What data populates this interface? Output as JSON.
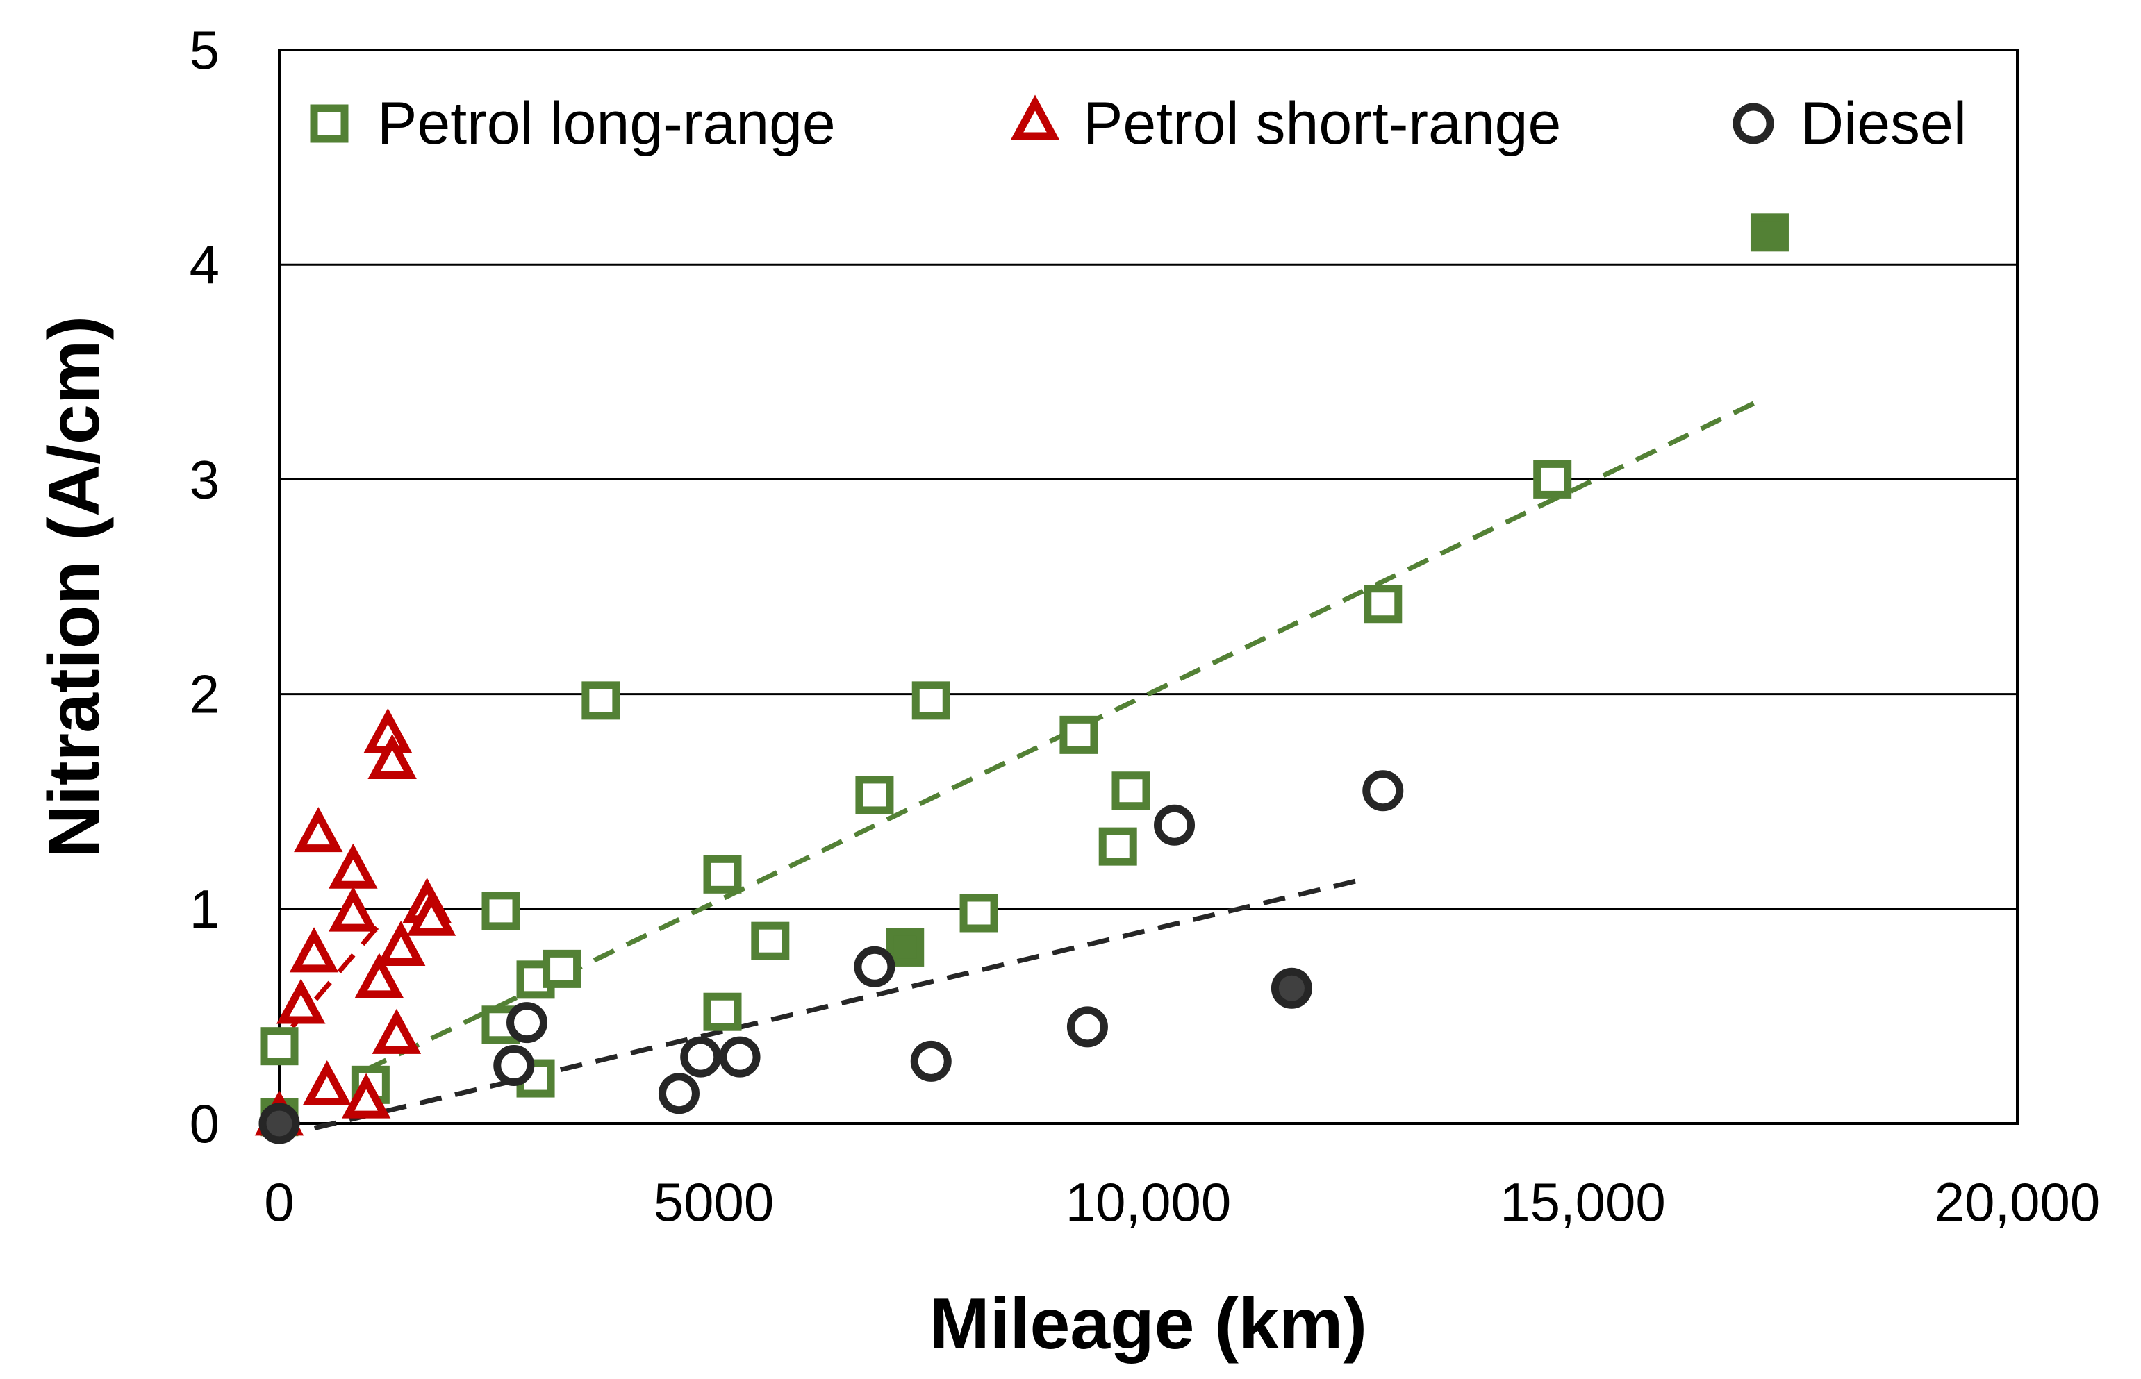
{
  "chart_data": {
    "type": "scatter",
    "xlabel": "Mileage (km)",
    "ylabel": "Nitration (A/cm)",
    "xlim": [
      0,
      20000
    ],
    "ylim": [
      0,
      5
    ],
    "xticks": [
      0,
      5000,
      10000,
      15000,
      20000
    ],
    "xtick_labels": [
      "0",
      "5000",
      "10,000",
      "15,000",
      "20,000"
    ],
    "yticks": [
      0,
      1,
      2,
      3,
      4,
      5
    ],
    "ytick_labels": [
      "0",
      "1",
      "2",
      "3",
      "4",
      "5"
    ],
    "grid": "horizontal",
    "legend_position": "top",
    "series": [
      {
        "name": "Petrol long-range",
        "marker": "square",
        "color": "#538135",
        "points": [
          {
            "x": 0,
            "y": 0.03,
            "filled": true
          },
          {
            "x": 0,
            "y": 0.36,
            "filled": false
          },
          {
            "x": 1050,
            "y": 0.18,
            "filled": false
          },
          {
            "x": 2550,
            "y": 0.99,
            "filled": false
          },
          {
            "x": 2550,
            "y": 0.46,
            "filled": false
          },
          {
            "x": 2950,
            "y": 0.67,
            "filled": false
          },
          {
            "x": 2950,
            "y": 0.21,
            "filled": false
          },
          {
            "x": 3250,
            "y": 0.72,
            "filled": false
          },
          {
            "x": 3700,
            "y": 1.97,
            "filled": false
          },
          {
            "x": 5100,
            "y": 1.16,
            "filled": false
          },
          {
            "x": 5100,
            "y": 0.52,
            "filled": false
          },
          {
            "x": 5650,
            "y": 0.85,
            "filled": false
          },
          {
            "x": 6850,
            "y": 1.53,
            "filled": false
          },
          {
            "x": 7200,
            "y": 0.82,
            "filled": true
          },
          {
            "x": 7500,
            "y": 1.97,
            "filled": false
          },
          {
            "x": 8050,
            "y": 0.98,
            "filled": false
          },
          {
            "x": 9200,
            "y": 1.81,
            "filled": false
          },
          {
            "x": 9650,
            "y": 1.29,
            "filled": false
          },
          {
            "x": 9800,
            "y": 1.55,
            "filled": false
          },
          {
            "x": 12700,
            "y": 2.42,
            "filled": false
          },
          {
            "x": 14650,
            "y": 3.0,
            "filled": false
          },
          {
            "x": 17150,
            "y": 4.15,
            "filled": true
          }
        ]
      },
      {
        "name": "Petrol short-range",
        "marker": "triangle",
        "color": "#c00000",
        "points": [
          {
            "x": 0,
            "y": 0.02,
            "filled": false
          },
          {
            "x": 250,
            "y": 0.54,
            "filled": false
          },
          {
            "x": 400,
            "y": 0.78,
            "filled": false
          },
          {
            "x": 450,
            "y": 1.34,
            "filled": false
          },
          {
            "x": 550,
            "y": 0.16,
            "filled": false
          },
          {
            "x": 850,
            "y": 1.17,
            "filled": false
          },
          {
            "x": 850,
            "y": 0.97,
            "filled": false
          },
          {
            "x": 1000,
            "y": 0.1,
            "filled": false
          },
          {
            "x": 1150,
            "y": 0.66,
            "filled": false
          },
          {
            "x": 1250,
            "y": 1.8,
            "filled": false
          },
          {
            "x": 1300,
            "y": 1.68,
            "filled": false
          },
          {
            "x": 1350,
            "y": 0.4,
            "filled": false
          },
          {
            "x": 1400,
            "y": 0.81,
            "filled": false
          },
          {
            "x": 1700,
            "y": 1.01,
            "filled": false
          },
          {
            "x": 1750,
            "y": 0.95,
            "filled": false
          }
        ]
      },
      {
        "name": "Diesel",
        "marker": "circle",
        "color": "#262626",
        "points": [
          {
            "x": 0,
            "y": 0.0,
            "filled": true
          },
          {
            "x": 2700,
            "y": 0.27,
            "filled": false
          },
          {
            "x": 2850,
            "y": 0.47,
            "filled": false
          },
          {
            "x": 4600,
            "y": 0.14,
            "filled": false
          },
          {
            "x": 4850,
            "y": 0.31,
            "filled": false
          },
          {
            "x": 5300,
            "y": 0.31,
            "filled": false
          },
          {
            "x": 6850,
            "y": 0.73,
            "filled": false
          },
          {
            "x": 7500,
            "y": 0.29,
            "filled": false
          },
          {
            "x": 9300,
            "y": 0.45,
            "filled": false
          },
          {
            "x": 10300,
            "y": 1.39,
            "filled": false
          },
          {
            "x": 11650,
            "y": 0.63,
            "filled": true
          },
          {
            "x": 12700,
            "y": 1.55,
            "filled": false
          }
        ]
      }
    ],
    "trendlines": [
      {
        "series": "Petrol long-range",
        "style": "dashed",
        "color": "#538135",
        "from": [
          1000,
          0.25
        ],
        "to": [
          17100,
          3.38
        ]
      },
      {
        "series": "Petrol short-range",
        "style": "dashed",
        "color": "#c00000",
        "from": [
          150,
          0.45
        ],
        "to": [
          1200,
          0.95
        ]
      },
      {
        "series": "Diesel",
        "style": "dashed",
        "color": "#262626",
        "from": [
          0,
          -0.06
        ],
        "to": [
          12400,
          1.13
        ]
      }
    ]
  }
}
